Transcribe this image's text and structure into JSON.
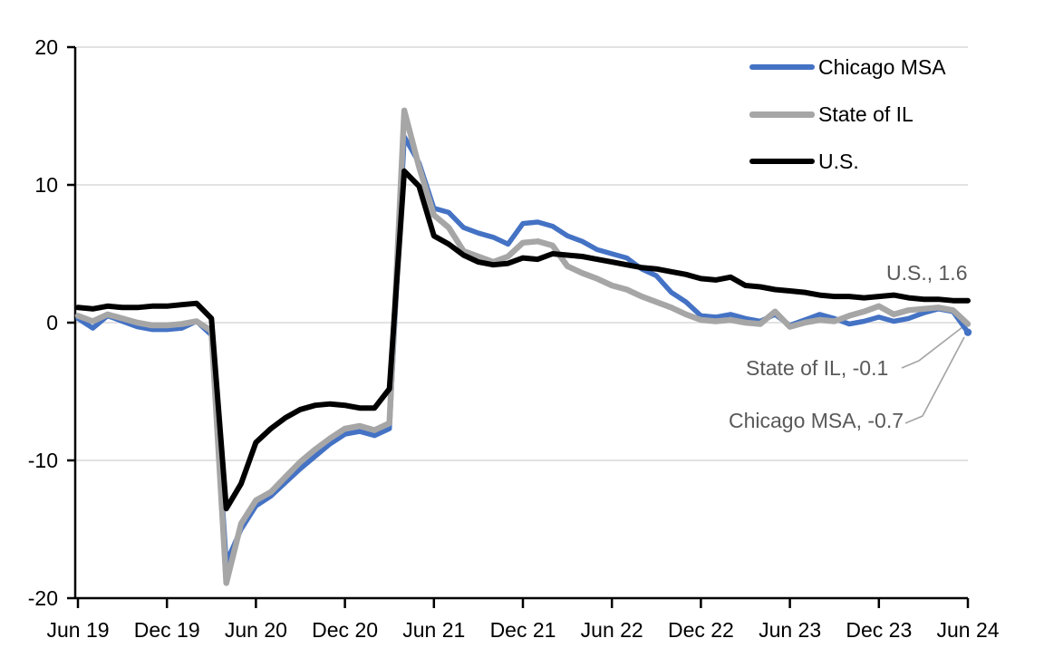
{
  "chart_data": {
    "type": "line",
    "title": "",
    "xlabel": "",
    "ylabel": "",
    "ylim": [
      -20,
      20
    ],
    "grid": true,
    "legend_position": "top-right",
    "x_tick_labels": [
      "Jun 19",
      "Dec 19",
      "Jun 20",
      "Dec 20",
      "Jun 21",
      "Dec 21",
      "Jun 22",
      "Dec 22",
      "Jun 23",
      "Dec 23",
      "Jun 24"
    ],
    "y_ticks": [
      20,
      10,
      0,
      -10,
      -20
    ],
    "y_tick_labels": [
      "20",
      "10",
      "0",
      "-10",
      "-20"
    ],
    "months": [
      "Jun 19",
      "Jul 19",
      "Aug 19",
      "Sep 19",
      "Oct 19",
      "Nov 19",
      "Dec 19",
      "Jan 20",
      "Feb 20",
      "Mar 20",
      "Apr 20",
      "May 20",
      "Jun 20",
      "Jul 20",
      "Aug 20",
      "Sep 20",
      "Oct 20",
      "Nov 20",
      "Dec 20",
      "Jan 21",
      "Feb 21",
      "Mar 21",
      "Apr 21",
      "May 21",
      "Jun 21",
      "Jul 21",
      "Aug 21",
      "Sep 21",
      "Oct 21",
      "Nov 21",
      "Dec 21",
      "Jan 22",
      "Feb 22",
      "Mar 22",
      "Apr 22",
      "May 22",
      "Jun 22",
      "Jul 22",
      "Aug 22",
      "Sep 22",
      "Oct 22",
      "Nov 22",
      "Dec 22",
      "Jan 23",
      "Feb 23",
      "Mar 23",
      "Apr 23",
      "May 23",
      "Jun 23",
      "Jul 23",
      "Aug 23",
      "Sep 23",
      "Oct 23",
      "Nov 23",
      "Dec 23",
      "Jan 24",
      "Feb 24",
      "Mar 24",
      "Apr 24",
      "May 24",
      "Jun 24"
    ],
    "series": [
      {
        "name": "Chicago MSA",
        "color": "#4472C4",
        "width": 5.5,
        "end_marker": true,
        "values": [
          0.3,
          -0.4,
          0.5,
          0.1,
          -0.3,
          -0.5,
          -0.5,
          -0.4,
          0.1,
          -0.9,
          -17.4,
          -15.0,
          -13.3,
          -12.6,
          -11.6,
          -10.6,
          -9.7,
          -8.8,
          -8.1,
          -7.9,
          -8.2,
          -7.7,
          13.5,
          11.6,
          8.3,
          8.0,
          6.9,
          6.5,
          6.2,
          5.7,
          7.2,
          7.3,
          7.0,
          6.3,
          5.9,
          5.3,
          5.0,
          4.7,
          3.9,
          3.4,
          2.2,
          1.5,
          0.5,
          0.4,
          0.6,
          0.3,
          0.1,
          0.6,
          -0.2,
          0.2,
          0.6,
          0.3,
          -0.1,
          0.1,
          0.4,
          0.1,
          0.3,
          0.7,
          1.0,
          0.8,
          -0.7
        ]
      },
      {
        "name": "State of IL",
        "color": "#A6A6A6",
        "width": 6.5,
        "end_marker": false,
        "values": [
          0.5,
          0.1,
          0.6,
          0.3,
          0.0,
          -0.2,
          -0.2,
          -0.1,
          0.1,
          -0.6,
          -18.9,
          -14.6,
          -12.9,
          -12.3,
          -11.2,
          -10.1,
          -9.2,
          -8.4,
          -7.7,
          -7.5,
          -7.8,
          -7.3,
          15.4,
          11.3,
          7.8,
          6.9,
          5.2,
          4.8,
          4.4,
          4.8,
          5.8,
          5.9,
          5.6,
          4.1,
          3.6,
          3.2,
          2.7,
          2.4,
          1.9,
          1.5,
          1.1,
          0.6,
          0.2,
          0.1,
          0.2,
          0.0,
          -0.1,
          0.8,
          -0.3,
          0.0,
          0.2,
          0.1,
          0.5,
          0.8,
          1.2,
          0.6,
          0.9,
          1.0,
          1.1,
          0.9,
          -0.1
        ]
      },
      {
        "name": "U.S.",
        "color": "#000000",
        "width": 6,
        "end_marker": false,
        "values": [
          1.1,
          1.0,
          1.2,
          1.1,
          1.1,
          1.2,
          1.2,
          1.3,
          1.4,
          0.3,
          -13.5,
          -11.7,
          -8.7,
          -7.7,
          -6.9,
          -6.3,
          -6.0,
          -5.9,
          -6.0,
          -6.2,
          -6.2,
          -4.8,
          11.0,
          9.9,
          6.3,
          5.7,
          4.9,
          4.4,
          4.2,
          4.3,
          4.7,
          4.6,
          5.0,
          4.9,
          4.8,
          4.6,
          4.4,
          4.2,
          4.0,
          3.9,
          3.7,
          3.5,
          3.2,
          3.1,
          3.3,
          2.7,
          2.6,
          2.4,
          2.3,
          2.2,
          2.0,
          1.9,
          1.9,
          1.8,
          1.9,
          2.0,
          1.8,
          1.7,
          1.7,
          1.6,
          1.6
        ]
      }
    ],
    "annotations": [
      {
        "text": "U.S., 1.6",
        "series": "U.S.",
        "last_value": 1.6
      },
      {
        "text": "State of IL, -0.1",
        "series": "State of IL",
        "last_value": -0.1
      },
      {
        "text": "Chicago MSA, -0.7",
        "series": "Chicago MSA",
        "last_value": -0.7
      }
    ],
    "colors": {
      "gridline": "#D9D9D9",
      "axis": "#000000",
      "annotation_text": "#595959",
      "leader": "#A6A6A6"
    }
  },
  "legend": {
    "items": [
      {
        "label": "Chicago MSA"
      },
      {
        "label": "State of IL"
      },
      {
        "label": "U.S."
      }
    ]
  },
  "annotations": {
    "us": "U.S., 1.6",
    "il": "State of IL, -0.1",
    "chicago": "Chicago MSA, -0.7"
  }
}
